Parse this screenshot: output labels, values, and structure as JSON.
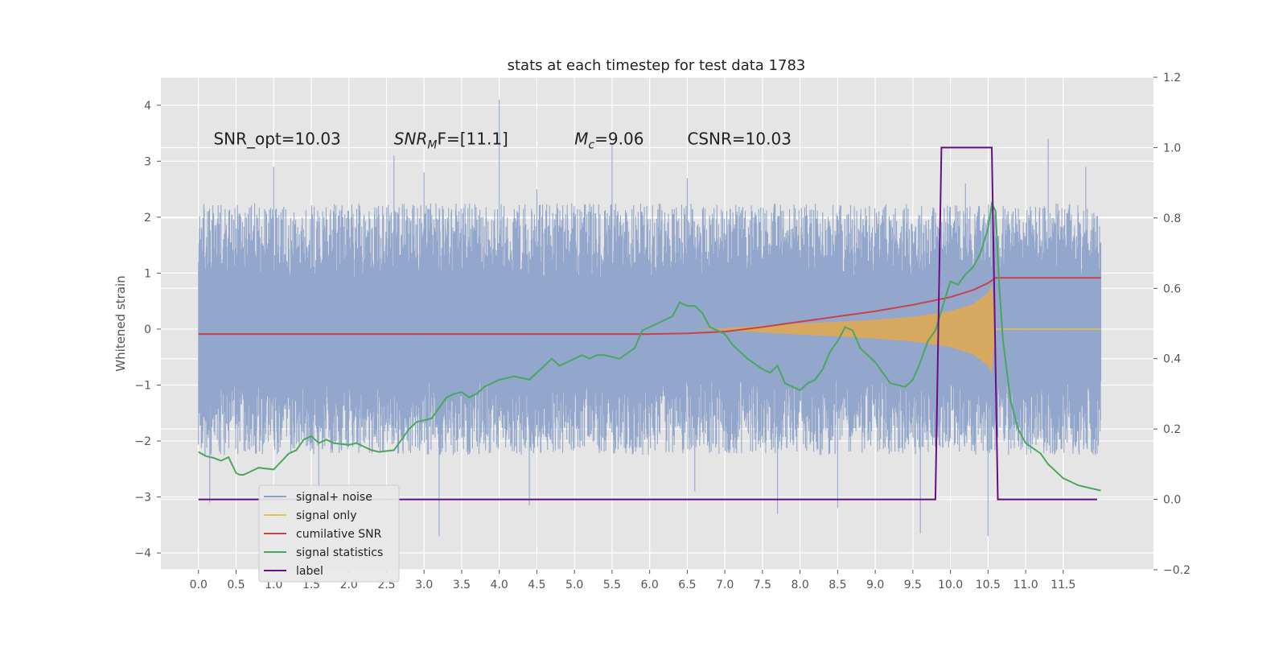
{
  "chart_data": {
    "type": "line",
    "title": "stats at each timestep for test data 1783",
    "ylabel_left": "Whitened strain",
    "ylabel_right": "",
    "xlim": [
      -0.5,
      12.7
    ],
    "ylim_left": [
      -4.3,
      4.5
    ],
    "ylim_right": [
      -0.2,
      1.2
    ],
    "x_ticks": [
      "0.0",
      "0.5",
      "1.0",
      "1.5",
      "2.0",
      "2.5",
      "3.0",
      "3.5",
      "4.0",
      "4.5",
      "5.0",
      "5.5",
      "6.0",
      "6.5",
      "7.0",
      "7.5",
      "8.0",
      "8.5",
      "9.0",
      "9.5",
      "10.0",
      "10.5",
      "11.0",
      "11.5"
    ],
    "y_ticks_left": [
      "4",
      "3",
      "2",
      "1",
      "0",
      "−1",
      "−2",
      "−3",
      "−4"
    ],
    "y_ticks_right": [
      "1.2",
      "1.0",
      "0.8",
      "0.6",
      "0.4",
      "0.2",
      "0.0",
      "−0.2"
    ],
    "grid": true,
    "legend_position": "lower-left",
    "annotations": [
      {
        "text": "SNR_opt=10.03",
        "x": 0.2,
        "y": 3.3
      },
      {
        "main": "SNR",
        "sub": "M",
        "rest": "F=[11.1]",
        "x": 2.6,
        "y": 3.3
      },
      {
        "main": "M",
        "sub": "c",
        "rest": "=9.06",
        "x": 5.0,
        "y": 3.3
      },
      {
        "text": "CSNR=10.03",
        "x": 6.5,
        "y": 3.3
      }
    ],
    "legend": [
      {
        "name": "signal+ noise",
        "color": "#8ea2c9"
      },
      {
        "name": "signal only",
        "color": "#e8c04f"
      },
      {
        "name": "cumilative SNR",
        "color": "#c8424a"
      },
      {
        "name": "signal statistics",
        "color": "#4aa760"
      },
      {
        "name": "label",
        "color": "#6a0d83"
      }
    ],
    "legend_overlap_text": "cumilative SNR",
    "series": [
      {
        "name": "signal+ noise",
        "axis": "left",
        "color": "#8ea2c9",
        "x_range": [
          0.0,
          12.0
        ],
        "upper_envelope_typical": 2.0,
        "lower_envelope_typical": -2.0,
        "peaks": [
          [
            1.0,
            2.9
          ],
          [
            2.6,
            3.1
          ],
          [
            3.0,
            2.8
          ],
          [
            4.0,
            4.1
          ],
          [
            4.5,
            2.5
          ],
          [
            5.5,
            3.3
          ],
          [
            6.5,
            2.7
          ],
          [
            10.2,
            2.6
          ],
          [
            11.3,
            3.4
          ],
          [
            11.8,
            2.9
          ]
        ],
        "troughs": [
          [
            0.15,
            -3.1
          ],
          [
            1.6,
            -2.9
          ],
          [
            3.2,
            -3.7
          ],
          [
            4.4,
            -3.15
          ],
          [
            6.6,
            -2.9
          ],
          [
            7.7,
            -3.3
          ],
          [
            8.5,
            -3.2
          ],
          [
            9.6,
            -3.65
          ],
          [
            10.5,
            -3.7
          ]
        ]
      },
      {
        "name": "signal only",
        "axis": "left",
        "color": "#e8a94a",
        "envelope": [
          [
            6.6,
            0.0
          ],
          [
            7.0,
            0.02
          ],
          [
            7.5,
            0.06
          ],
          [
            8.0,
            0.1
          ],
          [
            8.5,
            0.13
          ],
          [
            9.0,
            0.17
          ],
          [
            9.5,
            0.22
          ],
          [
            10.0,
            0.32
          ],
          [
            10.3,
            0.45
          ],
          [
            10.5,
            0.65
          ],
          [
            10.55,
            0.8
          ],
          [
            10.6,
            0.0
          ],
          [
            12.0,
            0.0
          ]
        ]
      },
      {
        "name": "cumilative SNR",
        "axis": "right",
        "color": "#c8424a",
        "x": [
          0.0,
          6.0,
          6.5,
          7.0,
          7.5,
          8.0,
          8.5,
          9.0,
          9.5,
          10.0,
          10.3,
          10.5,
          10.6,
          12.0
        ],
        "y": [
          0.47,
          0.47,
          0.472,
          0.477,
          0.49,
          0.505,
          0.52,
          0.535,
          0.553,
          0.575,
          0.595,
          0.615,
          0.63,
          0.63
        ]
      },
      {
        "name": "signal statistics",
        "axis": "right",
        "color": "#4aa760",
        "x": [
          0.0,
          0.1,
          0.2,
          0.3,
          0.4,
          0.5,
          0.55,
          0.6,
          0.7,
          0.8,
          1.0,
          1.2,
          1.3,
          1.4,
          1.5,
          1.6,
          1.7,
          1.8,
          2.0,
          2.1,
          2.2,
          2.3,
          2.4,
          2.6,
          2.7,
          2.8,
          2.9,
          3.0,
          3.1,
          3.3,
          3.4,
          3.5,
          3.6,
          3.7,
          3.8,
          3.9,
          4.0,
          4.1,
          4.2,
          4.4,
          4.6,
          4.7,
          4.8,
          4.9,
          5.0,
          5.1,
          5.2,
          5.3,
          5.4,
          5.6,
          5.8,
          5.9,
          6.0,
          6.1,
          6.2,
          6.3,
          6.4,
          6.5,
          6.6,
          6.7,
          6.8,
          6.9,
          7.0,
          7.1,
          7.3,
          7.5,
          7.6,
          7.7,
          7.8,
          7.9,
          8.0,
          8.1,
          8.2,
          8.3,
          8.4,
          8.5,
          8.6,
          8.7,
          8.8,
          9.0,
          9.1,
          9.2,
          9.4,
          9.5,
          9.6,
          9.7,
          9.8,
          9.9,
          10.0,
          10.1,
          10.2,
          10.3,
          10.4,
          10.5,
          10.55,
          10.6,
          10.65,
          10.7,
          10.8,
          10.9,
          11.0,
          11.2,
          11.3,
          11.5,
          11.7,
          11.9,
          12.0
        ],
        "y": [
          0.135,
          0.123,
          0.118,
          0.11,
          0.12,
          0.075,
          0.07,
          0.07,
          0.08,
          0.09,
          0.085,
          0.13,
          0.14,
          0.17,
          0.18,
          0.16,
          0.17,
          0.16,
          0.155,
          0.16,
          0.15,
          0.14,
          0.135,
          0.14,
          0.17,
          0.2,
          0.22,
          0.225,
          0.23,
          0.29,
          0.3,
          0.305,
          0.29,
          0.3,
          0.32,
          0.33,
          0.34,
          0.345,
          0.35,
          0.34,
          0.38,
          0.4,
          0.38,
          0.39,
          0.4,
          0.41,
          0.4,
          0.41,
          0.41,
          0.4,
          0.43,
          0.48,
          0.49,
          0.5,
          0.51,
          0.52,
          0.56,
          0.55,
          0.55,
          0.53,
          0.49,
          0.48,
          0.47,
          0.44,
          0.4,
          0.37,
          0.36,
          0.38,
          0.33,
          0.32,
          0.31,
          0.33,
          0.34,
          0.37,
          0.42,
          0.45,
          0.49,
          0.48,
          0.43,
          0.39,
          0.36,
          0.33,
          0.32,
          0.34,
          0.39,
          0.45,
          0.48,
          0.55,
          0.62,
          0.61,
          0.64,
          0.66,
          0.7,
          0.77,
          0.84,
          0.82,
          0.6,
          0.45,
          0.28,
          0.2,
          0.16,
          0.13,
          0.1,
          0.06,
          0.04,
          0.03,
          0.025
        ]
      },
      {
        "name": "label",
        "axis": "right",
        "color": "#6a0d83",
        "x": [
          0.0,
          9.8,
          9.88,
          10.55,
          10.63,
          11.95
        ],
        "y": [
          0.0,
          0.0,
          1.0,
          1.0,
          0.0,
          0.0
        ]
      }
    ]
  }
}
